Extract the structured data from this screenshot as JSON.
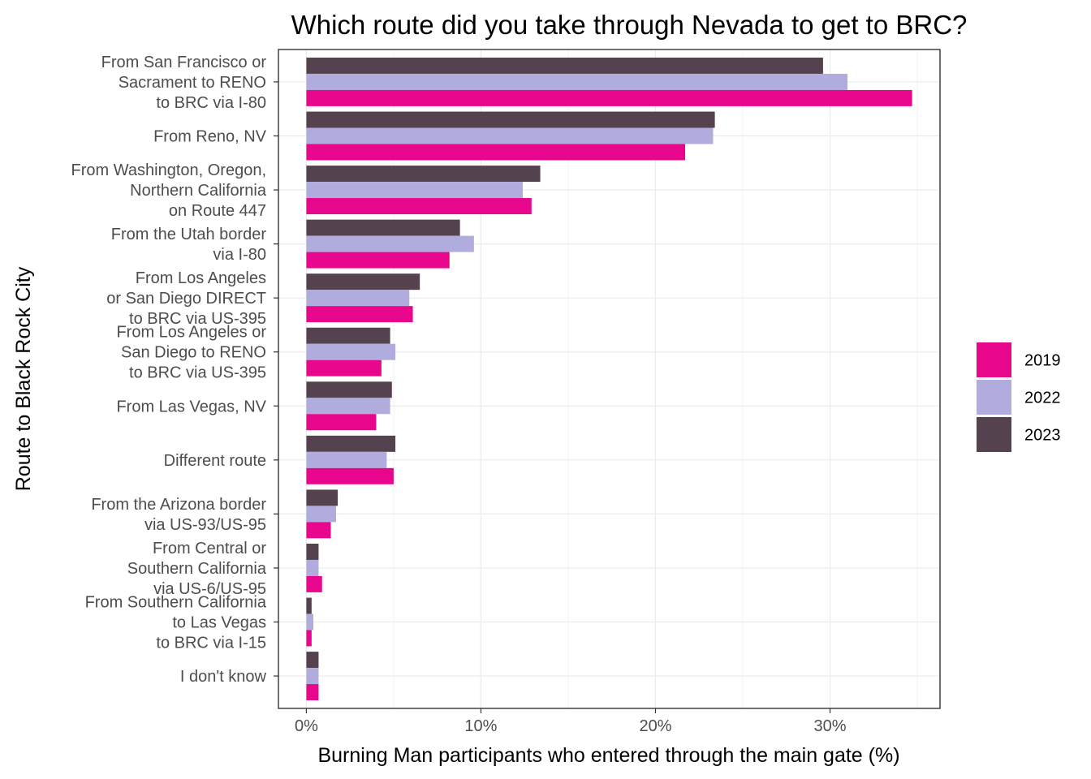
{
  "chart_data": {
    "type": "bar",
    "orientation": "horizontal",
    "title": "Which route did you take through Nevada to get to BRC?",
    "xlabel": "Burning Man participants who entered through the main gate (%)",
    "ylabel": "Route to Black Rock City",
    "xlim": [
      -1.6,
      36.3
    ],
    "x_ticks": [
      0,
      10,
      20,
      30
    ],
    "x_tick_labels": [
      "0%",
      "10%",
      "20%",
      "30%"
    ],
    "grid": true,
    "legend_position": "right",
    "categories": [
      [
        "From San Francisco or",
        "Sacrament to RENO",
        "to BRC via I-80"
      ],
      [
        "From Reno, NV"
      ],
      [
        "From Washington, Oregon,",
        "Northern California",
        "on Route 447"
      ],
      [
        "From the Utah border",
        "via I-80"
      ],
      [
        "From Los Angeles",
        "or San Diego DIRECT",
        "to BRC via US-395"
      ],
      [
        "From Los Angeles or",
        "San Diego to RENO",
        "to BRC via US-395"
      ],
      [
        "From Las Vegas, NV"
      ],
      [
        "Different route"
      ],
      [
        "From the Arizona border",
        "via US-93/US-95"
      ],
      [
        "From Central or",
        "Southern California",
        "via US-6/US-95"
      ],
      [
        "From Southern California",
        "to Las Vegas",
        "to BRC via I-15"
      ],
      [
        "I don't know"
      ]
    ],
    "series": [
      {
        "name": "2023",
        "color": "#54434e",
        "values": [
          29.6,
          23.4,
          13.4,
          8.8,
          6.5,
          4.8,
          4.9,
          5.1,
          1.8,
          0.7,
          0.3,
          0.7
        ]
      },
      {
        "name": "2022",
        "color": "#b0acde",
        "values": [
          31.0,
          23.3,
          12.4,
          9.6,
          5.9,
          5.1,
          4.8,
          4.6,
          1.7,
          0.7,
          0.4,
          0.7
        ]
      },
      {
        "name": "2019",
        "color": "#e8068c",
        "values": [
          34.7,
          21.7,
          12.9,
          8.2,
          6.1,
          4.3,
          4.0,
          5.0,
          1.4,
          0.9,
          0.3,
          0.7
        ]
      }
    ],
    "legend_order": [
      "2019",
      "2022",
      "2023"
    ]
  }
}
